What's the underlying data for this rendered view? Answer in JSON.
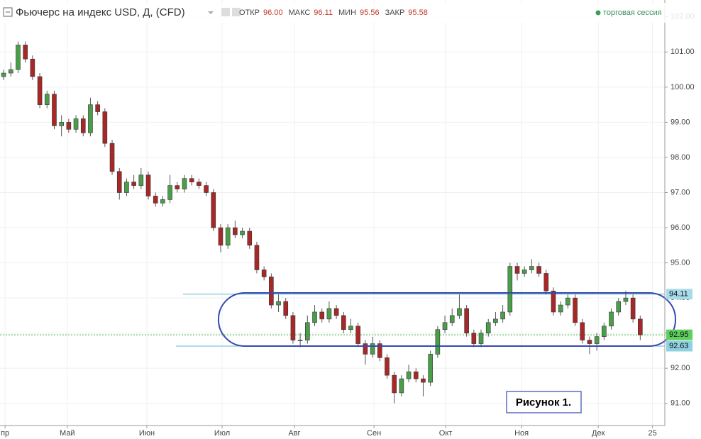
{
  "chart_data": {
    "type": "candlestick",
    "title": "Фьючерс на индекс USD, Д, (CFD)",
    "quote": [
      {
        "label": "ОТКР",
        "value": "96.00"
      },
      {
        "label": "МАКС",
        "value": "96.11"
      },
      {
        "label": "МИН",
        "value": "95.56"
      },
      {
        "label": "ЗАКР",
        "value": "95.58"
      }
    ],
    "session": "торговая сессия",
    "annotation": "Рисунок 1.",
    "up_color": "#4a9e4a",
    "down_color": "#a82828",
    "grid": true,
    "xlim": [
      -0.5,
      91.4
    ],
    "xticks": [
      {
        "value": 0.2,
        "label": "пр"
      },
      {
        "value": 8.8,
        "label": "Май"
      },
      {
        "value": 19.8,
        "label": "Июн"
      },
      {
        "value": 30.2,
        "label": "Июл"
      },
      {
        "value": 40.2,
        "label": "Авг"
      },
      {
        "value": 51.2,
        "label": "Сен"
      },
      {
        "value": 61.1,
        "label": "Окт"
      },
      {
        "value": 71.6,
        "label": "Ноя"
      },
      {
        "value": 82.2,
        "label": "Дек"
      },
      {
        "value": 89.7,
        "label": "25"
      }
    ],
    "ylim": [
      90.37,
      102.48
    ],
    "yticks": [
      {
        "value": 91,
        "label": "91.00"
      },
      {
        "value": 92,
        "label": "92.00"
      },
      {
        "value": 93,
        "label": "93.00"
      },
      {
        "value": 94,
        "label": "94.00"
      },
      {
        "value": 95,
        "label": "95.00"
      },
      {
        "value": 96,
        "label": "96.00"
      },
      {
        "value": 97,
        "label": "97.00"
      },
      {
        "value": 98,
        "label": "98.00"
      },
      {
        "value": 99,
        "label": "99.00"
      },
      {
        "value": 100,
        "label": "100.00"
      },
      {
        "value": 101,
        "label": "101.00"
      },
      {
        "value": 102,
        "label": "102.00"
      }
    ],
    "levels": [
      {
        "value": 94.11,
        "color": "#5bb8d0",
        "label_bg": "#a9dcea"
      },
      {
        "value": 92.95,
        "color": "#3cb43c",
        "label_bg": "#5fd05f"
      },
      {
        "value": 92.63,
        "color": "#5bb8d0",
        "label_bg": "#8fd1e0"
      }
    ],
    "open": [
      100.3,
      100.4,
      100.5,
      101.2,
      100.8,
      100.3,
      99.5,
      99.8,
      98.9,
      99.0,
      98.8,
      99.1,
      98.7,
      99.5,
      99.3,
      98.4,
      97.6,
      97.0,
      97.3,
      97.2,
      97.5,
      96.9,
      96.7,
      96.8,
      97.2,
      97.1,
      97.4,
      97.3,
      97.2,
      97.0,
      96.0,
      95.5,
      96.0,
      95.8,
      95.9,
      95.5,
      94.8,
      94.6,
      93.8,
      93.9,
      93.5,
      92.8,
      92.8,
      93.3,
      93.6,
      93.4,
      93.7,
      93.5,
      93.1,
      93.2,
      92.7,
      92.4,
      92.7,
      92.3,
      91.8,
      91.3,
      91.7,
      91.9,
      91.7,
      91.6,
      92.4,
      93.1,
      93.3,
      93.5,
      93.7,
      93.0,
      92.7,
      93.0,
      93.3,
      93.4,
      93.6,
      94.9,
      94.7,
      94.8,
      94.9,
      94.7,
      94.2,
      93.6,
      93.8,
      94.0,
      93.3,
      92.8,
      92.7,
      92.9,
      93.2,
      93.6,
      93.9,
      94.0,
      93.4
    ],
    "high": [
      100.5,
      100.7,
      101.3,
      101.3,
      100.9,
      100.4,
      99.9,
      99.9,
      99.2,
      99.1,
      99.2,
      99.2,
      99.7,
      99.6,
      99.4,
      98.5,
      97.7,
      97.4,
      97.5,
      97.7,
      97.6,
      97.0,
      96.9,
      97.5,
      97.3,
      97.5,
      97.5,
      97.4,
      97.3,
      97.1,
      96.1,
      96.1,
      96.2,
      96.0,
      96.0,
      95.6,
      94.9,
      94.7,
      94.1,
      94.0,
      93.6,
      93.0,
      93.5,
      93.8,
      93.7,
      93.9,
      93.8,
      93.6,
      93.4,
      93.3,
      92.8,
      92.9,
      92.8,
      92.4,
      91.9,
      91.8,
      92.1,
      92.0,
      91.8,
      92.5,
      93.2,
      93.5,
      93.7,
      94.1,
      93.8,
      93.1,
      93.1,
      93.4,
      93.6,
      93.8,
      95.0,
      95.0,
      94.9,
      95.1,
      95.0,
      94.8,
      94.3,
      93.9,
      94.1,
      94.1,
      93.4,
      92.9,
      93.0,
      93.3,
      93.7,
      94.0,
      94.2,
      94.1,
      93.5
    ],
    "low": [
      100.2,
      100.3,
      100.4,
      100.7,
      100.2,
      99.4,
      99.4,
      98.8,
      98.6,
      98.7,
      98.7,
      98.6,
      98.6,
      99.2,
      98.3,
      97.5,
      96.8,
      96.9,
      97.1,
      97.1,
      96.8,
      96.6,
      96.6,
      96.7,
      97.0,
      97.0,
      97.2,
      97.1,
      96.9,
      95.9,
      95.3,
      95.4,
      95.7,
      95.7,
      95.4,
      94.7,
      94.5,
      93.7,
      93.6,
      93.4,
      92.7,
      92.6,
      92.7,
      93.2,
      93.3,
      93.3,
      93.4,
      93.0,
      93.0,
      92.6,
      92.1,
      92.3,
      92.2,
      91.7,
      91.0,
      91.2,
      91.6,
      91.6,
      91.2,
      91.5,
      92.3,
      93.0,
      93.2,
      93.4,
      92.9,
      92.6,
      92.6,
      92.9,
      93.2,
      93.3,
      93.5,
      94.5,
      94.6,
      94.7,
      94.6,
      94.1,
      93.5,
      93.5,
      93.7,
      93.2,
      92.7,
      92.4,
      92.5,
      92.8,
      93.1,
      93.5,
      93.8,
      93.3,
      92.8
    ],
    "close": [
      100.4,
      100.5,
      101.2,
      100.8,
      100.3,
      99.5,
      99.8,
      98.9,
      99.0,
      98.8,
      99.1,
      98.7,
      99.5,
      99.3,
      98.4,
      97.6,
      97.0,
      97.3,
      97.2,
      97.5,
      96.9,
      96.7,
      96.8,
      97.2,
      97.1,
      97.4,
      97.3,
      97.2,
      97.0,
      96.0,
      95.5,
      96.0,
      95.8,
      95.9,
      95.5,
      94.8,
      94.6,
      93.8,
      93.9,
      93.5,
      92.8,
      92.8,
      93.3,
      93.6,
      93.4,
      93.7,
      93.5,
      93.1,
      93.2,
      92.7,
      92.4,
      92.7,
      92.3,
      91.8,
      91.3,
      91.7,
      91.9,
      91.7,
      91.6,
      92.4,
      93.1,
      93.3,
      93.5,
      93.7,
      93.0,
      92.7,
      93.0,
      93.3,
      93.4,
      93.6,
      94.9,
      94.7,
      94.8,
      94.9,
      94.7,
      94.2,
      93.6,
      93.8,
      94.0,
      93.3,
      92.8,
      92.7,
      92.9,
      93.2,
      93.6,
      93.9,
      94.0,
      93.4,
      92.95
    ]
  }
}
